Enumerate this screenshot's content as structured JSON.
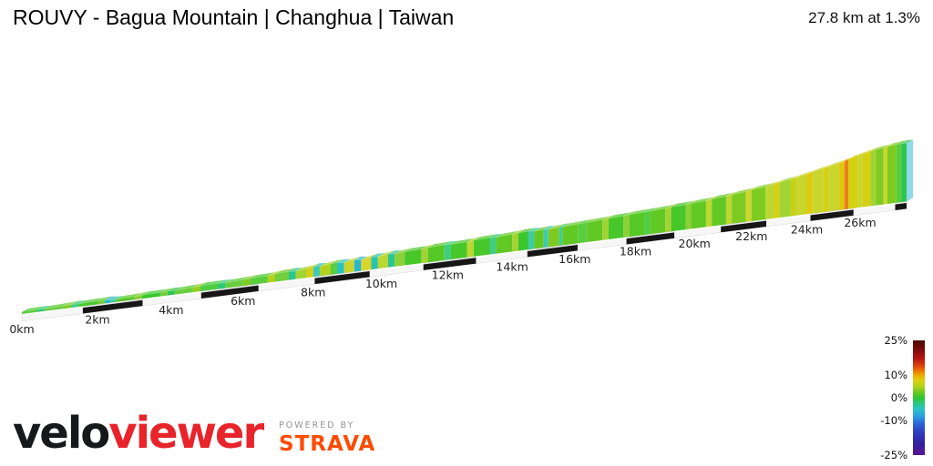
{
  "header": {
    "title": "ROUVY - Bagua Mountain | Changhua | Taiwan",
    "stats": "27.8 km at 1.3%"
  },
  "branding": {
    "logo_black": "velo",
    "logo_red": "viewer",
    "powered_by": "POWERED BY",
    "strava": "STRAVA"
  },
  "legend": {
    "ticks": [
      {
        "label": "25%",
        "value": 25
      },
      {
        "label": "10%",
        "value": 10
      },
      {
        "label": "0%",
        "value": 0
      },
      {
        "label": "-10%",
        "value": -10
      },
      {
        "label": "-25%",
        "value": -25
      }
    ],
    "min_pct": -25,
    "max_pct": 25
  },
  "chart_data": {
    "type": "area",
    "title": "ROUVY - Bagua Mountain | Changhua | Taiwan",
    "subtitle": "27.8 km at 1.3%",
    "distance_km": 27.8,
    "avg_gradient_pct": 1.3,
    "x_tick_km": [
      0,
      2,
      4,
      6,
      8,
      10,
      12,
      14,
      16,
      18,
      20,
      22,
      24,
      26
    ],
    "x_tick_labels": [
      "0km",
      "2km",
      "4km",
      "6km",
      "8km",
      "10km",
      "12km",
      "14km",
      "16km",
      "18km",
      "20km",
      "22km",
      "24km",
      "26km"
    ],
    "stripe_interval_km": 1.609,
    "stripe_color": "#161616",
    "platform_color": "#f6f6f6",
    "end_cap_color": "#8fd9e8",
    "start_cap_color": "#1d8a1d",
    "gradient_color_stops": [
      {
        "pct": -25,
        "color": "#5a1694"
      },
      {
        "pct": -20,
        "color": "#31219f"
      },
      {
        "pct": -15,
        "color": "#2e3ec0"
      },
      {
        "pct": -11,
        "color": "#2b6ad8"
      },
      {
        "pct": -8,
        "color": "#27a0e2"
      },
      {
        "pct": -5,
        "color": "#28c2c2"
      },
      {
        "pct": -2.5,
        "color": "#2bc784"
      },
      {
        "pct": 0,
        "color": "#2dc62d"
      },
      {
        "pct": 2.5,
        "color": "#6fc922"
      },
      {
        "pct": 5,
        "color": "#b3d21a"
      },
      {
        "pct": 7.5,
        "color": "#ddd010"
      },
      {
        "pct": 9.5,
        "color": "#eab200"
      },
      {
        "pct": 11.5,
        "color": "#ec7d00"
      },
      {
        "pct": 14,
        "color": "#dd3f0e"
      },
      {
        "pct": 17,
        "color": "#b81410"
      },
      {
        "pct": 21,
        "color": "#7c0d0a"
      },
      {
        "pct": 25,
        "color": "#4a0a05"
      }
    ],
    "segments": [
      [
        0,
        0.4,
        1
      ],
      [
        0.4,
        0.6,
        -2
      ],
      [
        0.6,
        1.1,
        1.5
      ],
      [
        1.1,
        1.3,
        3
      ],
      [
        1.3,
        1.5,
        -2
      ],
      [
        1.5,
        2,
        1
      ],
      [
        2,
        2.2,
        2
      ],
      [
        2.2,
        2.35,
        -6
      ],
      [
        2.35,
        2.5,
        -3
      ],
      [
        2.5,
        3,
        1.5
      ],
      [
        3,
        3.2,
        3
      ],
      [
        3.2,
        3.7,
        0.5
      ],
      [
        3.7,
        3.9,
        2
      ],
      [
        3.9,
        4.1,
        -1
      ],
      [
        4.1,
        4.6,
        1.5
      ],
      [
        4.6,
        4.8,
        4
      ],
      [
        4.8,
        5.3,
        0.5
      ],
      [
        5.3,
        5.5,
        -2
      ],
      [
        5.5,
        6,
        1.5
      ],
      [
        6,
        6.2,
        3
      ],
      [
        6.2,
        6.7,
        1
      ],
      [
        6.7,
        6.9,
        5
      ],
      [
        6.9,
        7.3,
        2
      ],
      [
        7.3,
        7.5,
        -3
      ],
      [
        7.5,
        7.8,
        4
      ],
      [
        7.8,
        8,
        7
      ],
      [
        8,
        8.2,
        -4
      ],
      [
        8.2,
        8.5,
        5
      ],
      [
        8.5,
        8.7,
        1
      ],
      [
        8.7,
        8.9,
        -5
      ],
      [
        8.9,
        9.2,
        6
      ],
      [
        9.2,
        9.4,
        -6
      ],
      [
        9.4,
        9.7,
        7
      ],
      [
        9.7,
        9.9,
        -4
      ],
      [
        9.9,
        10.2,
        5
      ],
      [
        10.2,
        10.4,
        -3
      ],
      [
        10.4,
        10.7,
        3
      ],
      [
        10.7,
        11.2,
        1
      ],
      [
        11.2,
        11.4,
        4
      ],
      [
        11.4,
        11.9,
        1.5
      ],
      [
        11.9,
        12.1,
        -2
      ],
      [
        12.1,
        12.6,
        1
      ],
      [
        12.6,
        12.8,
        5
      ],
      [
        12.8,
        13.3,
        1
      ],
      [
        13.3,
        13.5,
        -2
      ],
      [
        13.5,
        14,
        2
      ],
      [
        14,
        14.2,
        4
      ],
      [
        14.2,
        14.5,
        0.5
      ],
      [
        14.5,
        14.7,
        -3
      ],
      [
        14.7,
        15,
        2
      ],
      [
        15,
        15.15,
        -4
      ],
      [
        15.15,
        15.5,
        3
      ],
      [
        15.5,
        15.6,
        -3
      ],
      [
        15.6,
        16.1,
        2
      ],
      [
        16.1,
        16.4,
        1
      ],
      [
        16.4,
        16.9,
        2
      ],
      [
        16.9,
        17.1,
        4
      ],
      [
        17.1,
        17.6,
        1
      ],
      [
        17.6,
        17.8,
        3
      ],
      [
        17.8,
        18.3,
        1.5
      ],
      [
        18.3,
        18.5,
        0.5
      ],
      [
        18.5,
        19,
        2
      ],
      [
        19,
        19.2,
        4
      ],
      [
        19.2,
        19.7,
        1
      ],
      [
        19.7,
        19.9,
        3
      ],
      [
        19.9,
        20.4,
        2
      ],
      [
        20.4,
        20.6,
        5
      ],
      [
        20.6,
        21.1,
        2
      ],
      [
        21.1,
        21.3,
        5
      ],
      [
        21.3,
        21.8,
        3
      ],
      [
        21.8,
        22,
        6
      ],
      [
        22,
        22.5,
        3
      ],
      [
        22.5,
        22.8,
        5
      ],
      [
        22.8,
        23,
        7
      ],
      [
        23,
        23.4,
        4
      ],
      [
        23.4,
        23.6,
        6
      ],
      [
        23.6,
        24,
        6
      ],
      [
        24,
        24.2,
        8
      ],
      [
        24.2,
        24.6,
        6
      ],
      [
        24.6,
        24.8,
        7
      ],
      [
        24.8,
        25.2,
        6
      ],
      [
        25.2,
        25.4,
        8
      ],
      [
        25.4,
        25.55,
        12
      ],
      [
        25.55,
        25.9,
        7
      ],
      [
        25.9,
        26.1,
        6
      ],
      [
        26.1,
        26.4,
        7
      ],
      [
        26.4,
        26.6,
        4
      ],
      [
        26.6,
        26.9,
        3
      ],
      [
        26.9,
        27.05,
        6
      ],
      [
        27.05,
        27.4,
        3
      ],
      [
        27.4,
        27.6,
        1
      ],
      [
        27.6,
        27.8,
        -1
      ]
    ]
  }
}
